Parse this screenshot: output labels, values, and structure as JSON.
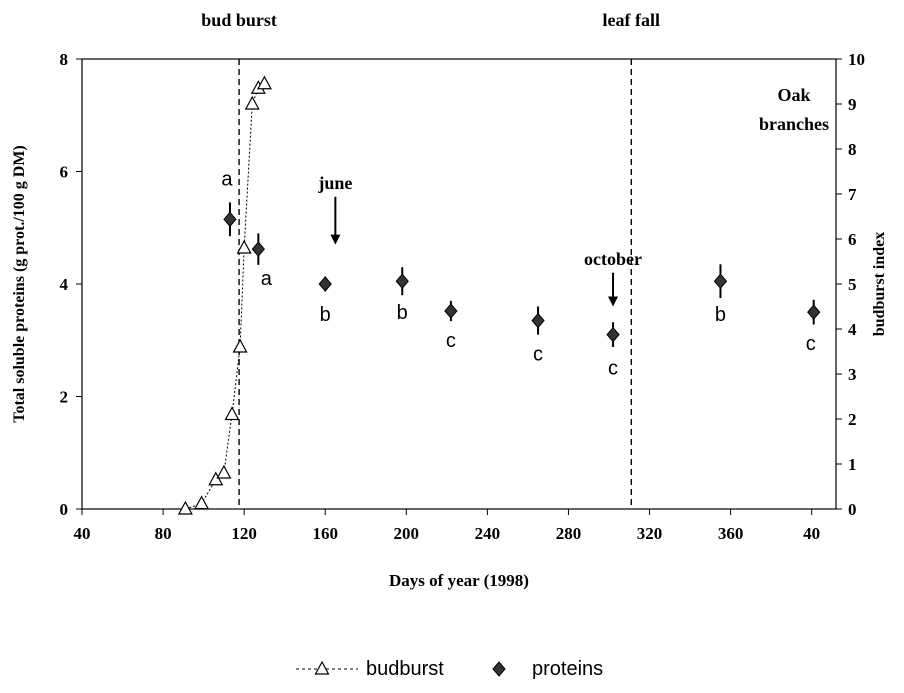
{
  "chart_data": {
    "type": "scatter",
    "xlabel": "Days of year (1998)",
    "ylabel_left": "Total soluble proteins (g prot./100 g DM)",
    "ylabel_right": "budburst index",
    "x_ticks": [
      "40",
      "80",
      "120",
      "160",
      "200",
      "240",
      "280",
      "320",
      "360",
      "40"
    ],
    "x_tick_values": [
      40,
      80,
      120,
      160,
      200,
      240,
      280,
      320,
      360,
      400
    ],
    "xlim": [
      40,
      412
    ],
    "ylim_left": [
      0,
      8
    ],
    "ylim_right": [
      0,
      10
    ],
    "y_ticks_left": [
      "0",
      "2",
      "4",
      "6",
      "8"
    ],
    "y_ticks_right": [
      "0",
      "1",
      "2",
      "3",
      "4",
      "5",
      "6",
      "7",
      "8",
      "9",
      "10"
    ],
    "corner_label": [
      "Oak",
      "branches"
    ],
    "event_lines": [
      {
        "label": "bud burst",
        "x": 117.5
      },
      {
        "label": "leaf fall",
        "x": 311
      }
    ],
    "arrows": [
      {
        "label": "june",
        "x": 165,
        "y_from": 5.55,
        "y_to": 4.7
      },
      {
        "label": "october",
        "x": 302,
        "y_from": 4.2,
        "y_to": 3.6
      }
    ],
    "series": [
      {
        "name": "budburst",
        "axis": "right",
        "marker": "triangle-open",
        "line": "dotted",
        "x": [
          91,
          99,
          106,
          110,
          114,
          118,
          120,
          124,
          127,
          130
        ],
        "y": [
          0.0,
          0.12,
          0.65,
          0.8,
          2.1,
          3.6,
          5.8,
          9.0,
          9.35,
          9.45
        ]
      },
      {
        "name": "proteins",
        "axis": "left",
        "marker": "diamond-filled",
        "x": [
          113,
          127,
          160,
          198,
          222,
          265,
          302,
          355,
          401
        ],
        "y": [
          5.15,
          4.62,
          4.0,
          4.05,
          3.52,
          3.35,
          3.1,
          4.05,
          3.5
        ],
        "err": [
          0.3,
          0.28,
          0.13,
          0.25,
          0.18,
          0.25,
          0.22,
          0.3,
          0.22
        ],
        "labels": [
          "a",
          "a",
          "b",
          "b",
          "c",
          "c",
          "c",
          "b",
          "c"
        ]
      }
    ],
    "legend": {
      "position": "bottom-center",
      "entries": [
        "budburst",
        "proteins"
      ]
    }
  }
}
